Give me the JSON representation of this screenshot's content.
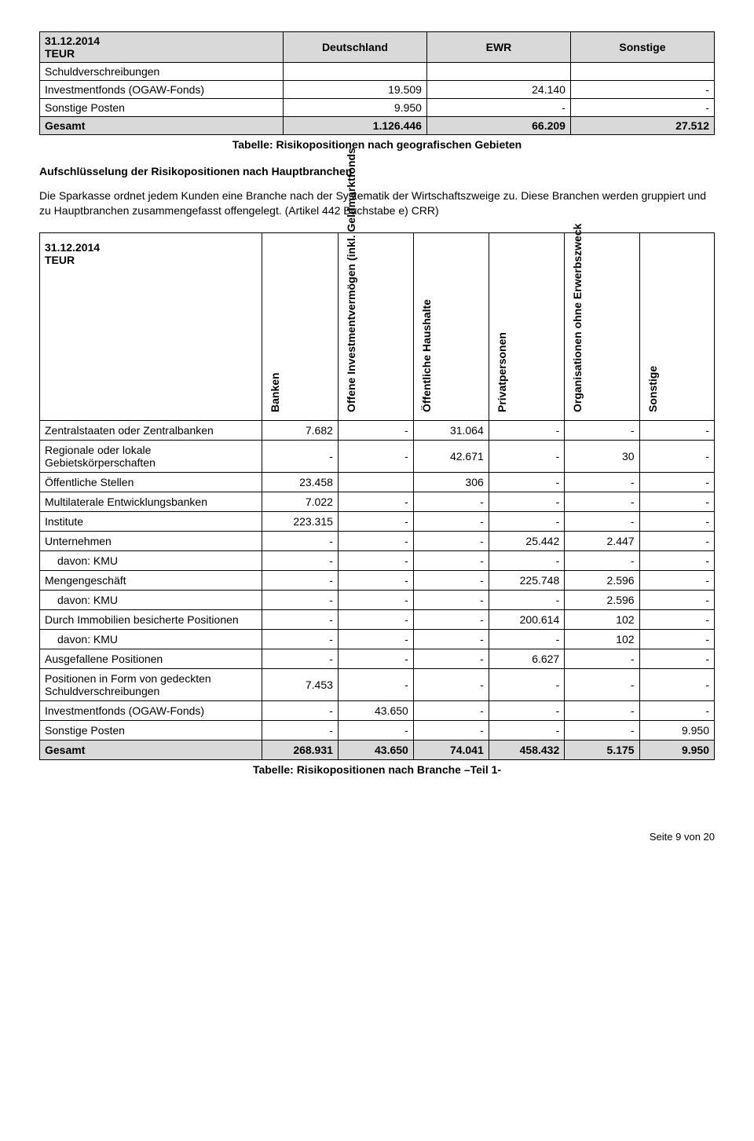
{
  "table1": {
    "header_date": "31.12.2014",
    "header_unit": "TEUR",
    "cols": [
      "Deutschland",
      "EWR",
      "Sonstige"
    ],
    "rows": [
      {
        "label": "Schuldverschreibungen",
        "vals": [
          "",
          "",
          ""
        ],
        "shade": false
      },
      {
        "label": "Investmentfonds (OGAW-Fonds)",
        "vals": [
          "19.509",
          "24.140",
          "-"
        ],
        "shade": false
      },
      {
        "label": "Sonstige Posten",
        "vals": [
          "9.950",
          "-",
          "-"
        ],
        "shade": false
      },
      {
        "label": "Gesamt",
        "vals": [
          "1.126.446",
          "66.209",
          "27.512"
        ],
        "shade": true
      }
    ],
    "caption": "Tabelle: Risikopositionen nach geografischen Gebieten"
  },
  "section": {
    "heading": "Aufschlüsselung der Risikopositionen nach Hauptbranchen",
    "body": "Die Sparkasse ordnet jedem Kunden eine Branche nach der Systematik der Wirtschaftszweige zu. Diese Branchen werden gruppiert und zu Hauptbranchen zusammengefasst offengelegt. (Artikel 442 Buchstabe e) CRR)"
  },
  "table2": {
    "header_date": "31.12.2014",
    "header_unit": "TEUR",
    "cols": [
      "Banken",
      "Offene\nInvestmentvermögen\n(inkl. Geldmarktfonds",
      "Öffentliche Haushalte",
      "Privatpersonen",
      "Organisationen ohne\nErwerbszweck",
      "Sonstige"
    ],
    "rows": [
      {
        "label": "Zentralstaaten oder Zentralbanken",
        "vals": [
          "7.682",
          "-",
          "31.064",
          "-",
          "-",
          "-"
        ],
        "shade": false,
        "indent": false
      },
      {
        "label": "Regionale oder lokale Gebietskörperschaften",
        "vals": [
          "-",
          "-",
          "42.671",
          "-",
          "30",
          "-"
        ],
        "shade": false,
        "indent": false
      },
      {
        "label": "Öffentliche Stellen",
        "vals": [
          "23.458",
          "",
          "306",
          "-",
          "-",
          "-"
        ],
        "shade": false,
        "indent": false
      },
      {
        "label": "Multilaterale Entwicklungsbanken",
        "vals": [
          "7.022",
          "-",
          "-",
          "-",
          "-",
          "-"
        ],
        "shade": false,
        "indent": false
      },
      {
        "label": "Institute",
        "vals": [
          "223.315",
          "-",
          "-",
          "-",
          "-",
          "-"
        ],
        "shade": false,
        "indent": false
      },
      {
        "label": "Unternehmen",
        "vals": [
          "-",
          "-",
          "-",
          "25.442",
          "2.447",
          "-"
        ],
        "shade": false,
        "indent": false
      },
      {
        "label": "davon: KMU",
        "vals": [
          "-",
          "-",
          "-",
          "-",
          "-",
          "-"
        ],
        "shade": false,
        "indent": true
      },
      {
        "label": "Mengengeschäft",
        "vals": [
          "-",
          "-",
          "-",
          "225.748",
          "2.596",
          "-"
        ],
        "shade": false,
        "indent": false
      },
      {
        "label": "davon: KMU",
        "vals": [
          "-",
          "-",
          "-",
          "-",
          "2.596",
          "-"
        ],
        "shade": false,
        "indent": true
      },
      {
        "label": "Durch Immobilien besicherte Positionen",
        "vals": [
          "-",
          "-",
          "-",
          "200.614",
          "102",
          "-"
        ],
        "shade": false,
        "indent": false
      },
      {
        "label": "davon: KMU",
        "vals": [
          "-",
          "-",
          "-",
          "-",
          "102",
          "-"
        ],
        "shade": false,
        "indent": true
      },
      {
        "label": "Ausgefallene Positionen",
        "vals": [
          "-",
          "-",
          "-",
          "6.627",
          "-",
          "-"
        ],
        "shade": false,
        "indent": false
      },
      {
        "label": "Positionen in Form von gedeckten Schuldverschreibungen",
        "vals": [
          "7.453",
          "-",
          "-",
          "-",
          "-",
          "-"
        ],
        "shade": false,
        "indent": false
      },
      {
        "label": "Investmentfonds (OGAW-Fonds)",
        "vals": [
          "-",
          "43.650",
          "-",
          "-",
          "-",
          "-"
        ],
        "shade": false,
        "indent": false
      },
      {
        "label": "Sonstige Posten",
        "vals": [
          "-",
          "-",
          "-",
          "-",
          "-",
          "9.950"
        ],
        "shade": false,
        "indent": false
      },
      {
        "label": "Gesamt",
        "vals": [
          "268.931",
          "43.650",
          "74.041",
          "458.432",
          "5.175",
          "9.950"
        ],
        "shade": true,
        "indent": false
      }
    ],
    "caption": "Tabelle: Risikopositionen nach Branche –Teil 1-"
  },
  "footer": "Seite 9 von 20"
}
